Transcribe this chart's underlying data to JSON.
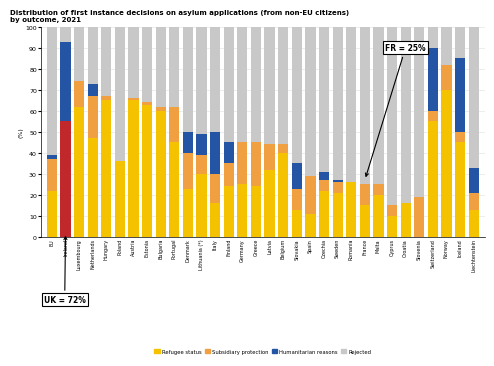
{
  "title_line1": "Distribution of first instance decisions on asylum applications (from non-EU citizens)",
  "title_line2": "by outcome, 2021",
  "ylabel": "(%)",
  "countries": [
    "EU",
    "Ireland",
    "Luxembourg",
    "Netherlands",
    "Hungary",
    "Poland",
    "Austria",
    "Estonia",
    "Bulgaria",
    "Portugal",
    "Denmark",
    "Lithuania (*)",
    "Italy",
    "Finland",
    "Germany",
    "Greece",
    "Latvia",
    "Belgium",
    "Slovakia",
    "Spain",
    "Czechia",
    "Sweden",
    "Romania",
    "France",
    "Malta",
    "Cyprus",
    "Croatia",
    "Slovenia",
    "Switzerland",
    "Norway",
    "Iceland",
    "Liechtenstein"
  ],
  "refugee": [
    22,
    55,
    62,
    47,
    65,
    36,
    65,
    63,
    60,
    45,
    23,
    30,
    16,
    24,
    25,
    24,
    32,
    40,
    13,
    11,
    22,
    21,
    26,
    15,
    20,
    10,
    16,
    0,
    55,
    70,
    45,
    13
  ],
  "subsidiary": [
    15,
    0,
    12,
    20,
    2,
    0,
    1,
    1,
    2,
    17,
    17,
    9,
    14,
    11,
    20,
    21,
    12,
    4,
    10,
    18,
    5,
    5,
    0,
    10,
    5,
    5,
    0,
    19,
    5,
    12,
    5,
    8
  ],
  "humanitarian": [
    2,
    38,
    0,
    6,
    0,
    0,
    0,
    0,
    0,
    0,
    10,
    10,
    20,
    10,
    0,
    0,
    0,
    0,
    12,
    0,
    4,
    1,
    0,
    0,
    0,
    0,
    0,
    0,
    30,
    0,
    35,
    12
  ],
  "rejected": [
    61,
    7,
    26,
    27,
    33,
    64,
    34,
    36,
    38,
    38,
    50,
    51,
    50,
    55,
    55,
    55,
    56,
    56,
    65,
    71,
    69,
    73,
    74,
    75,
    75,
    85,
    84,
    81,
    10,
    18,
    15,
    67
  ],
  "colors": {
    "refugee": "#f5c200",
    "subsidiary": "#f0a040",
    "humanitarian": "#2455a4",
    "rejected": "#c8c8c8",
    "ireland_bar": "#c0282b"
  },
  "bar_width": 0.75,
  "annotation_fr": "FR = 25%",
  "annotation_uk": "UK = 72%",
  "fr_bar_index": 23,
  "ylim": [
    0,
    100
  ]
}
